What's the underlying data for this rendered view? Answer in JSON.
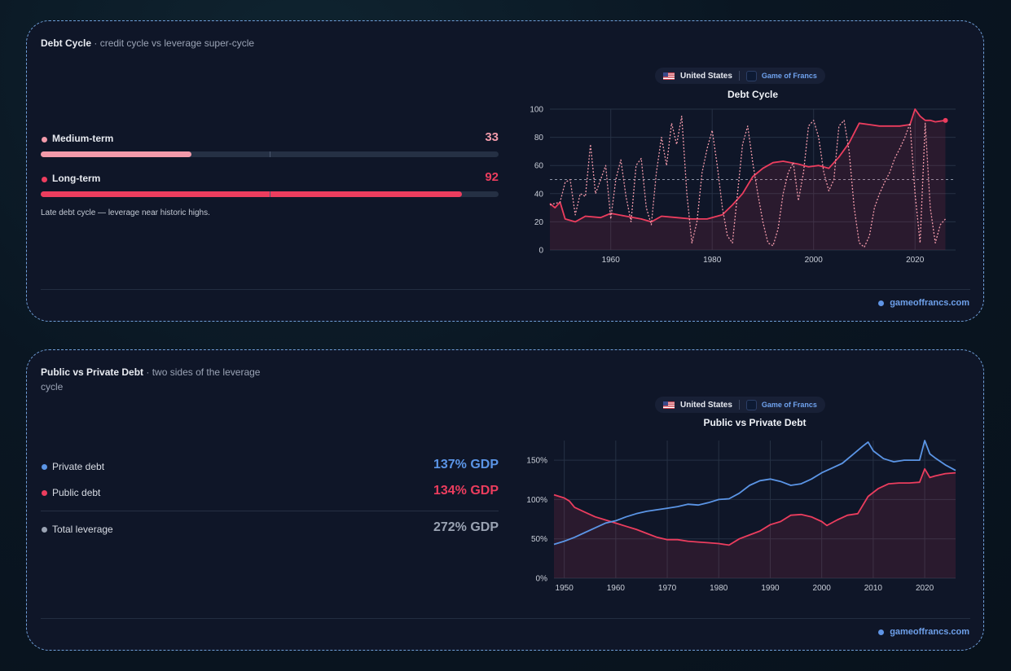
{
  "colors": {
    "medium": "#f29aaa",
    "long": "#ec3d5e",
    "private": "#5b95e6",
    "public": "#ec3d5e",
    "total": "#9aa3b3",
    "grid": "#263144",
    "axis_text": "#c9ced8"
  },
  "icons": {
    "flag": "us-flag-icon",
    "brand": "game-of-francs-logo-icon",
    "credit": "dot-icon"
  },
  "debt_cycle": {
    "title": "Debt Cycle",
    "subtitle": "· credit cycle vs leverage super-cycle",
    "metrics": [
      {
        "label": "Medium-term",
        "value": "33",
        "fill": 0.33
      },
      {
        "label": "Long-term",
        "value": "92",
        "fill": 0.92
      }
    ],
    "note": "Late debt cycle — leverage near historic highs.",
    "tabs": {
      "country": "United States",
      "brand": "Game of Francs"
    },
    "credit": "gameoffrancs.com"
  },
  "public_private": {
    "title": "Public vs Private Debt",
    "subtitle": "· two sides of the leverage cycle",
    "rows": [
      {
        "label": "Private debt",
        "value": "137% GDP"
      },
      {
        "label": "Public debt",
        "value": "134% GDP"
      },
      {
        "label": "Total leverage",
        "value": "272% GDP"
      }
    ],
    "tabs": {
      "country": "United States",
      "brand": "Game of Francs"
    },
    "credit": "gameoffrancs.com"
  },
  "chart_data": [
    {
      "type": "line",
      "title": "Debt Cycle",
      "xlim": [
        1948,
        2028
      ],
      "ylim": [
        0,
        100
      ],
      "x_ticks": [
        1960,
        1980,
        2000,
        2020
      ],
      "y_ticks": [
        0,
        20,
        40,
        60,
        80,
        100
      ],
      "reference_line": 50,
      "grid": true,
      "series": [
        {
          "style": "solid-area",
          "points": [
            [
              1948,
              33
            ],
            [
              1949,
              30
            ],
            [
              1950,
              34
            ],
            [
              1951,
              22
            ],
            [
              1953,
              20
            ],
            [
              1955,
              24
            ],
            [
              1958,
              23
            ],
            [
              1960,
              26
            ],
            [
              1963,
              24
            ],
            [
              1966,
              22
            ],
            [
              1968,
              20
            ],
            [
              1970,
              24
            ],
            [
              1973,
              23
            ],
            [
              1976,
              22
            ],
            [
              1979,
              22
            ],
            [
              1982,
              25
            ],
            [
              1984,
              32
            ],
            [
              1986,
              40
            ],
            [
              1988,
              52
            ],
            [
              1990,
              58
            ],
            [
              1992,
              62
            ],
            [
              1994,
              63
            ],
            [
              1997,
              61
            ],
            [
              1999,
              59
            ],
            [
              2001,
              60
            ],
            [
              2003,
              58
            ],
            [
              2005,
              66
            ],
            [
              2007,
              76
            ],
            [
              2009,
              90
            ],
            [
              2011,
              89
            ],
            [
              2013,
              88
            ],
            [
              2015,
              88
            ],
            [
              2017,
              88
            ],
            [
              2019,
              89
            ],
            [
              2020,
              100
            ],
            [
              2021,
              95
            ],
            [
              2022,
              92
            ],
            [
              2023,
              92
            ],
            [
              2024,
              91
            ],
            [
              2026,
              92
            ]
          ]
        },
        {
          "style": "dotted",
          "points": [
            [
              1948,
              32
            ],
            [
              1950,
              34
            ],
            [
              1951,
              48
            ],
            [
              1952,
              50
            ],
            [
              1953,
              25
            ],
            [
              1954,
              40
            ],
            [
              1955,
              38
            ],
            [
              1956,
              75
            ],
            [
              1957,
              40
            ],
            [
              1958,
              50
            ],
            [
              1959,
              60
            ],
            [
              1960,
              22
            ],
            [
              1961,
              50
            ],
            [
              1962,
              64
            ],
            [
              1963,
              38
            ],
            [
              1964,
              20
            ],
            [
              1965,
              60
            ],
            [
              1966,
              65
            ],
            [
              1967,
              30
            ],
            [
              1968,
              18
            ],
            [
              1969,
              55
            ],
            [
              1970,
              80
            ],
            [
              1971,
              60
            ],
            [
              1972,
              90
            ],
            [
              1973,
              75
            ],
            [
              1974,
              95
            ],
            [
              1975,
              40
            ],
            [
              1976,
              5
            ],
            [
              1977,
              20
            ],
            [
              1978,
              55
            ],
            [
              1979,
              72
            ],
            [
              1980,
              85
            ],
            [
              1981,
              60
            ],
            [
              1982,
              30
            ],
            [
              1983,
              10
            ],
            [
              1984,
              5
            ],
            [
              1985,
              40
            ],
            [
              1986,
              75
            ],
            [
              1987,
              88
            ],
            [
              1988,
              62
            ],
            [
              1989,
              40
            ],
            [
              1990,
              20
            ],
            [
              1991,
              5
            ],
            [
              1992,
              3
            ],
            [
              1993,
              15
            ],
            [
              1994,
              40
            ],
            [
              1995,
              55
            ],
            [
              1996,
              62
            ],
            [
              1997,
              35
            ],
            [
              1998,
              55
            ],
            [
              1999,
              88
            ],
            [
              2000,
              92
            ],
            [
              2001,
              80
            ],
            [
              2002,
              55
            ],
            [
              2003,
              42
            ],
            [
              2004,
              50
            ],
            [
              2005,
              88
            ],
            [
              2006,
              92
            ],
            [
              2007,
              70
            ],
            [
              2008,
              30
            ],
            [
              2009,
              5
            ],
            [
              2010,
              2
            ],
            [
              2011,
              10
            ],
            [
              2012,
              30
            ],
            [
              2013,
              40
            ],
            [
              2014,
              48
            ],
            [
              2015,
              55
            ],
            [
              2016,
              65
            ],
            [
              2017,
              72
            ],
            [
              2018,
              80
            ],
            [
              2019,
              90
            ],
            [
              2020,
              40
            ],
            [
              2021,
              5
            ],
            [
              2022,
              90
            ],
            [
              2023,
              30
            ],
            [
              2024,
              5
            ],
            [
              2025,
              18
            ],
            [
              2026,
              22
            ]
          ]
        }
      ]
    },
    {
      "type": "line",
      "title": "Public vs Private Debt",
      "xlim": [
        1948,
        2026
      ],
      "ylim": [
        0,
        175
      ],
      "x_ticks": [
        1950,
        1960,
        1970,
        1980,
        1990,
        2000,
        2010,
        2020
      ],
      "y_ticks": [
        0,
        50,
        100,
        150
      ],
      "y_tick_labels": [
        "0%",
        "50%",
        "100%",
        "150%"
      ],
      "grid": true,
      "series": [
        {
          "color_key": "public",
          "style": "solid-area",
          "points": [
            [
              1948,
              106
            ],
            [
              1950,
              102
            ],
            [
              1951,
              98
            ],
            [
              1952,
              90
            ],
            [
              1954,
              84
            ],
            [
              1956,
              78
            ],
            [
              1958,
              74
            ],
            [
              1960,
              70
            ],
            [
              1962,
              66
            ],
            [
              1964,
              62
            ],
            [
              1966,
              57
            ],
            [
              1968,
              52
            ],
            [
              1970,
              49
            ],
            [
              1972,
              49
            ],
            [
              1974,
              47
            ],
            [
              1976,
              46
            ],
            [
              1978,
              45
            ],
            [
              1980,
              44
            ],
            [
              1982,
              42
            ],
            [
              1984,
              50
            ],
            [
              1986,
              55
            ],
            [
              1988,
              60
            ],
            [
              1990,
              68
            ],
            [
              1992,
              72
            ],
            [
              1994,
              80
            ],
            [
              1996,
              81
            ],
            [
              1998,
              78
            ],
            [
              2000,
              72
            ],
            [
              2001,
              67
            ],
            [
              2003,
              74
            ],
            [
              2005,
              80
            ],
            [
              2007,
              82
            ],
            [
              2009,
              104
            ],
            [
              2011,
              114
            ],
            [
              2013,
              120
            ],
            [
              2015,
              121
            ],
            [
              2017,
              121
            ],
            [
              2019,
              122
            ],
            [
              2020,
              139
            ],
            [
              2021,
              128
            ],
            [
              2022,
              130
            ],
            [
              2024,
              133
            ],
            [
              2026,
              134
            ]
          ]
        },
        {
          "color_key": "private",
          "style": "solid",
          "points": [
            [
              1948,
              43
            ],
            [
              1950,
              47
            ],
            [
              1952,
              52
            ],
            [
              1954,
              58
            ],
            [
              1956,
              64
            ],
            [
              1958,
              70
            ],
            [
              1960,
              73
            ],
            [
              1962,
              78
            ],
            [
              1964,
              82
            ],
            [
              1966,
              85
            ],
            [
              1968,
              87
            ],
            [
              1970,
              89
            ],
            [
              1972,
              91
            ],
            [
              1974,
              94
            ],
            [
              1976,
              93
            ],
            [
              1978,
              96
            ],
            [
              1980,
              100
            ],
            [
              1982,
              101
            ],
            [
              1984,
              108
            ],
            [
              1986,
              118
            ],
            [
              1988,
              124
            ],
            [
              1990,
              126
            ],
            [
              1992,
              123
            ],
            [
              1994,
              118
            ],
            [
              1996,
              120
            ],
            [
              1998,
              126
            ],
            [
              2000,
              134
            ],
            [
              2002,
              140
            ],
            [
              2004,
              146
            ],
            [
              2006,
              157
            ],
            [
              2008,
              168
            ],
            [
              2009,
              173
            ],
            [
              2010,
              162
            ],
            [
              2012,
              152
            ],
            [
              2014,
              148
            ],
            [
              2016,
              150
            ],
            [
              2018,
              150
            ],
            [
              2019,
              150
            ],
            [
              2020,
              175
            ],
            [
              2021,
              158
            ],
            [
              2022,
              153
            ],
            [
              2024,
              144
            ],
            [
              2026,
              137
            ]
          ]
        }
      ]
    }
  ]
}
